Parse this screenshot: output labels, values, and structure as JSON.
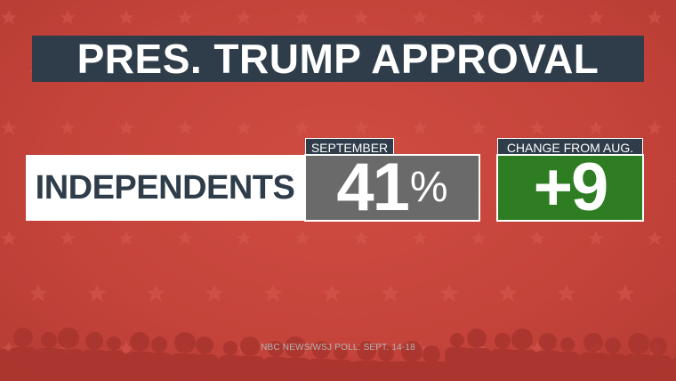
{
  "title": "PRES. TRUMP APPROVAL",
  "group": {
    "label": "INDEPENDENTS"
  },
  "september": {
    "tag": "SEPTEMBER",
    "value": "41",
    "unit": "%"
  },
  "change": {
    "tag": "CHANGE FROM AUG.",
    "value": "+9"
  },
  "source": "NBC NEWS/WSJ POLL: SEPT. 14-18",
  "colors": {
    "background": "#c8463c",
    "title_bar": "#2f3d4a",
    "september_box": "#6a6a6a",
    "change_box": "#2e7d22"
  },
  "icons": {
    "background_pattern": "star-pattern",
    "footer_art": "crowd-silhouette"
  }
}
